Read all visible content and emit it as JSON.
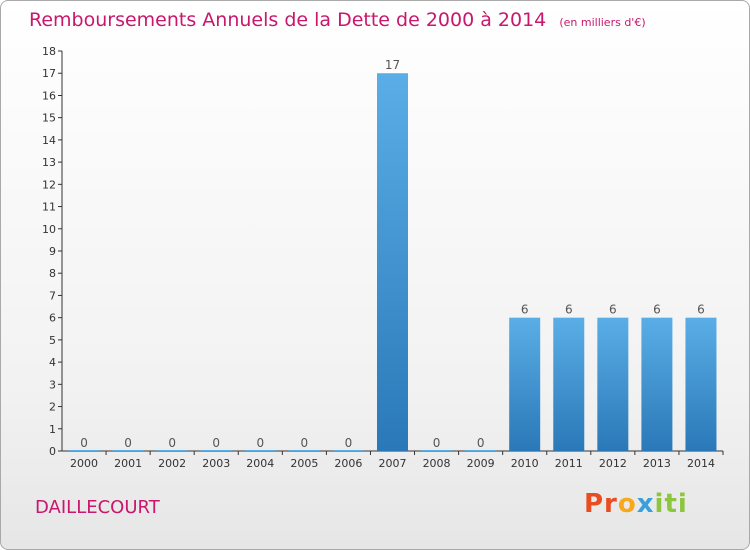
{
  "chart_data": {
    "type": "bar",
    "title": "Remboursements Annuels de la Dette de 2000 à 2014",
    "unit": "(en milliers d'€)",
    "categories": [
      "2000",
      "2001",
      "2002",
      "2003",
      "2004",
      "2005",
      "2006",
      "2007",
      "2008",
      "2009",
      "2010",
      "2011",
      "2012",
      "2013",
      "2014"
    ],
    "values": [
      0,
      0,
      0,
      0,
      0,
      0,
      0,
      17,
      0,
      0,
      6,
      6,
      6,
      6,
      6
    ],
    "data_labels": [
      "0",
      "0",
      "0",
      "0",
      "0",
      "0",
      "0",
      "17",
      "0",
      "0",
      "6",
      "6",
      "6",
      "6",
      "6"
    ],
    "ylim": [
      0,
      18
    ],
    "yticks": [
      "0",
      "1",
      "2",
      "3",
      "4",
      "5",
      "6",
      "7",
      "8",
      "9",
      "10",
      "11",
      "12",
      "13",
      "14",
      "15",
      "16",
      "17",
      "18"
    ],
    "xlabel": "",
    "ylabel": "",
    "grid": false,
    "bar_color_top": "#5aaee6",
    "bar_color_bottom": "#2a78b8"
  },
  "footer": {
    "commune": "DAILLECOURT",
    "logo_parts": [
      "Pr",
      "o",
      "x",
      "iti"
    ]
  },
  "colors": {
    "title": "#c8176d",
    "axis": "#333333"
  }
}
